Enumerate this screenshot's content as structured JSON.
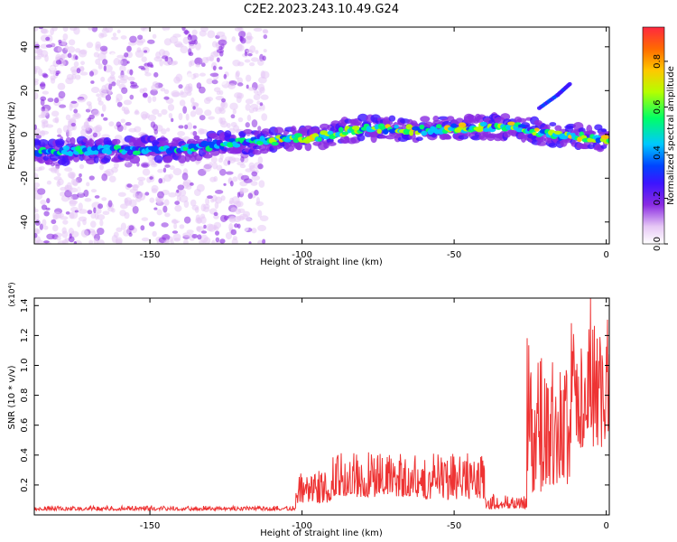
{
  "title": "C2E2.2023.243.10.49.G24",
  "chart_data": [
    {
      "type": "heatmap",
      "xlabel": "Height of straight line (km)",
      "ylabel": "Frequency (Hz)",
      "xlim": [
        -188,
        1
      ],
      "ylim": [
        -50,
        49
      ],
      "x_ticks": [
        -150,
        -100,
        -50,
        0
      ],
      "y_ticks": [
        -40,
        -20,
        0,
        20,
        40
      ],
      "colorbar": {
        "label": "Normalized spectral amplitude",
        "range": [
          0,
          0.95
        ],
        "ticks": [
          0.0,
          0.2,
          0.4,
          0.6,
          0.8
        ],
        "colormap": [
          "#ffffff",
          "#e6c8f5",
          "#8a2be2",
          "#3c14ff",
          "#0044ff",
          "#00c8ff",
          "#00ff66",
          "#b4ff00",
          "#ffc800",
          "#ff2840"
        ]
      },
      "ridge": [
        {
          "x": -188,
          "y": -8
        },
        {
          "x": -160,
          "y": -7
        },
        {
          "x": -140,
          "y": -7
        },
        {
          "x": -125,
          "y": -4
        },
        {
          "x": -110,
          "y": -3
        },
        {
          "x": -95,
          "y": -1
        },
        {
          "x": -80,
          "y": 3
        },
        {
          "x": -60,
          "y": 2
        },
        {
          "x": -45,
          "y": 3
        },
        {
          "x": -30,
          "y": 4
        },
        {
          "x": -20,
          "y": 0
        },
        {
          "x": 0,
          "y": -2
        }
      ],
      "secondary_ridge": [
        {
          "x": -22,
          "y": 12
        },
        {
          "x": -16,
          "y": 18
        },
        {
          "x": -12,
          "y": 23
        }
      ],
      "noise_band": [
        -188,
        -112
      ]
    },
    {
      "type": "line",
      "xlabel": "Height of straight line (km)",
      "ylabel": "SNR (10 * v/v)",
      "y_multiplier": "(x10⁴)",
      "xlim": [
        -188,
        1
      ],
      "ylim": [
        0,
        1.45
      ],
      "x_ticks": [
        -150,
        -100,
        -50,
        0
      ],
      "y_ticks": [
        0.2,
        0.4,
        0.6,
        0.8,
        1.0,
        1.2,
        1.4
      ],
      "color": "#ee3333",
      "segments": [
        {
          "x_from": -188,
          "x_to": -102,
          "base": 0.03,
          "amp": 0.03
        },
        {
          "x_from": -102,
          "x_to": -90,
          "base": 0.08,
          "amp": 0.22
        },
        {
          "x_from": -90,
          "x_to": -60,
          "base": 0.12,
          "amp": 0.3
        },
        {
          "x_from": -60,
          "x_to": -40,
          "base": 0.1,
          "amp": 0.32
        },
        {
          "x_from": -40,
          "x_to": -26,
          "base": 0.04,
          "amp": 0.1
        },
        {
          "x_from": -26,
          "x_to": -20,
          "base": 0.15,
          "amp": 1.05
        },
        {
          "x_from": -20,
          "x_to": -12,
          "base": 0.2,
          "amp": 0.9
        },
        {
          "x_from": -12,
          "x_to": 1,
          "base": 0.45,
          "amp": 1.0
        }
      ]
    }
  ]
}
